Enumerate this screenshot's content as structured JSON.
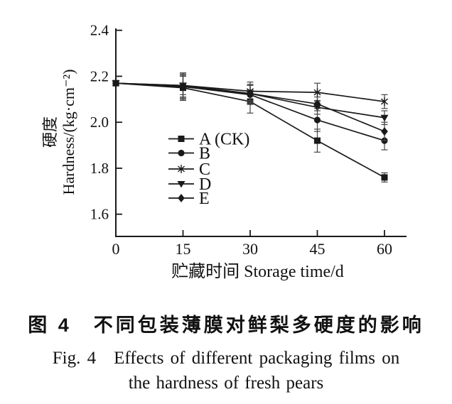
{
  "figure": {
    "caption_zh": "图 4　不同包装薄膜对鲜梨多硬度的影响",
    "caption_en_line1": "Fig. 4　Effects of different packaging films on",
    "caption_en_line2": "the hardness of fresh pears"
  },
  "chart_data": {
    "type": "line",
    "title": "",
    "xlabel": "贮藏时间 Storage time/d",
    "ylabel_line1": "硬度",
    "ylabel_line2": "Hardness/(kg·cm⁻²)",
    "x": [
      0,
      15,
      30,
      45,
      60
    ],
    "xticks": [
      0,
      15,
      30,
      45,
      60
    ],
    "yticks": [
      1.6,
      1.8,
      2.0,
      2.2,
      2.4
    ],
    "xlim": [
      0,
      65
    ],
    "ylim": [
      1.5,
      2.41
    ],
    "grid": false,
    "legend_position": "inside-lower-left",
    "line_color": "#1a1a1a",
    "error_bar_color": "#444444",
    "series": [
      {
        "name": "A (CK)",
        "marker": "square",
        "values": [
          2.17,
          2.15,
          2.09,
          1.92,
          1.76
        ],
        "errors": [
          0,
          0.05,
          0.05,
          0.05,
          0.02
        ]
      },
      {
        "name": "B",
        "marker": "circle",
        "values": [
          2.17,
          2.155,
          2.12,
          2.01,
          1.92
        ],
        "errors": [
          0,
          0.06,
          0.04,
          0.05,
          0.04
        ]
      },
      {
        "name": "C",
        "marker": "asterisk",
        "values": [
          2.17,
          2.16,
          2.135,
          2.13,
          2.09
        ],
        "errors": [
          0,
          0.05,
          0.04,
          0.04,
          0.03
        ]
      },
      {
        "name": "D",
        "marker": "triangle-down",
        "values": [
          2.17,
          2.16,
          2.125,
          2.065,
          2.02
        ],
        "errors": [
          0,
          0.04,
          0.04,
          0.03,
          0.03
        ]
      },
      {
        "name": "E",
        "marker": "diamond",
        "values": [
          2.17,
          2.155,
          2.125,
          2.08,
          1.96
        ],
        "errors": [
          0,
          0.05,
          0.035,
          0.03,
          0.04
        ]
      }
    ]
  }
}
